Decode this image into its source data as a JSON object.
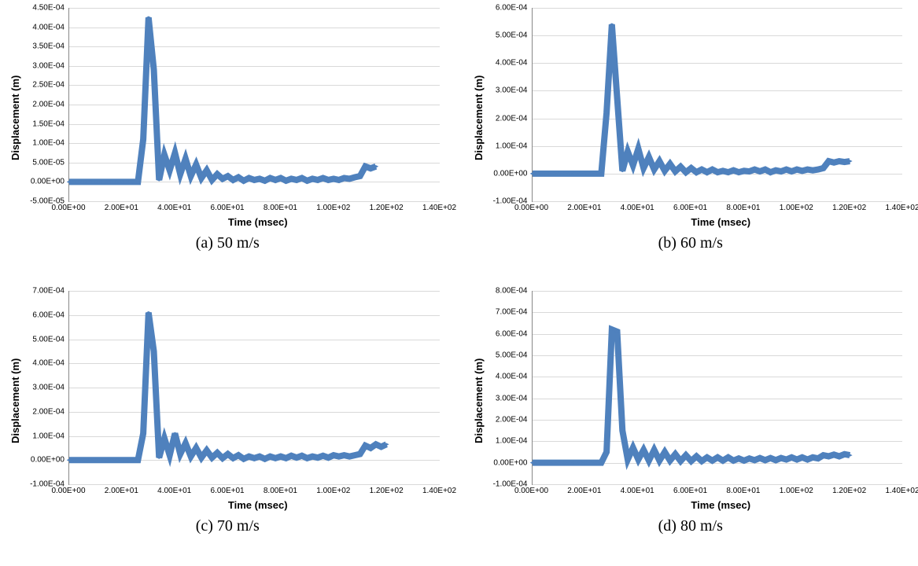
{
  "layout": {
    "cols": 2,
    "rows": 2
  },
  "common": {
    "x_label": "Time (msec)",
    "y_label": "Displacement (m)",
    "x_label_fontsize": 13,
    "y_label_fontsize": 13,
    "tick_fontsize": 10,
    "caption_fontsize": 20,
    "line_color": "#4f81bd",
    "marker_color": "#4f81bd",
    "marker_shape": "diamond",
    "marker_size": 5,
    "line_width": 2,
    "grid_color": "#d9d9d9",
    "background_color": "#ffffff",
    "axis_color": "#888888"
  },
  "charts": [
    {
      "id": "a",
      "caption": "(a) 50 m/s",
      "xlim": [
        0,
        140
      ],
      "x_ticks": [
        0,
        20,
        40,
        60,
        80,
        100,
        120,
        140
      ],
      "x_tick_labels": [
        "0.00E+00",
        "2.00E+01",
        "4.00E+01",
        "6.00E+01",
        "8.00E+01",
        "1.00E+02",
        "1.20E+02",
        "1.40E+02"
      ],
      "ylim": [
        -5e-05,
        0.00045
      ],
      "y_ticks": [
        -5e-05,
        0,
        5e-05,
        0.0001,
        0.00015,
        0.0002,
        0.00025,
        0.0003,
        0.00035,
        0.0004,
        0.00045
      ],
      "y_tick_labels": [
        "-5.00E-05",
        "0.00E+00",
        "5.00E-05",
        "1.00E-04",
        "1.50E-04",
        "2.00E-04",
        "2.50E-04",
        "3.00E-04",
        "3.50E-04",
        "4.00E-04",
        "4.50E-04"
      ],
      "data": [
        [
          0,
          0
        ],
        [
          2,
          0
        ],
        [
          4,
          0
        ],
        [
          6,
          0
        ],
        [
          8,
          0
        ],
        [
          10,
          0
        ],
        [
          12,
          0
        ],
        [
          14,
          0
        ],
        [
          16,
          0
        ],
        [
          18,
          0
        ],
        [
          20,
          0
        ],
        [
          22,
          0
        ],
        [
          24,
          0
        ],
        [
          26,
          0
        ],
        [
          28,
          0.00011
        ],
        [
          30,
          0.000425
        ],
        [
          32,
          0.00029
        ],
        [
          34,
          5e-06
        ],
        [
          36,
          7e-05
        ],
        [
          38,
          3e-05
        ],
        [
          40,
          7.5e-05
        ],
        [
          42,
          2e-05
        ],
        [
          44,
          6e-05
        ],
        [
          46,
          1.5e-05
        ],
        [
          48,
          4.5e-05
        ],
        [
          50,
          1e-05
        ],
        [
          52,
          3e-05
        ],
        [
          54,
          5e-06
        ],
        [
          56,
          2e-05
        ],
        [
          58,
          8e-06
        ],
        [
          60,
          1.5e-05
        ],
        [
          62,
          5e-06
        ],
        [
          64,
          1.2e-05
        ],
        [
          66,
          3e-06
        ],
        [
          68,
          1e-05
        ],
        [
          70,
          5e-06
        ],
        [
          72,
          8e-06
        ],
        [
          74,
          3e-06
        ],
        [
          76,
          1e-05
        ],
        [
          78,
          5e-06
        ],
        [
          80,
          1e-05
        ],
        [
          82,
          3e-06
        ],
        [
          84,
          8e-06
        ],
        [
          86,
          5e-06
        ],
        [
          88,
          1e-05
        ],
        [
          90,
          3e-06
        ],
        [
          92,
          8e-06
        ],
        [
          94,
          5e-06
        ],
        [
          96,
          1e-05
        ],
        [
          98,
          5e-06
        ],
        [
          100,
          8e-06
        ],
        [
          102,
          5e-06
        ],
        [
          104,
          1e-05
        ],
        [
          106,
          8e-06
        ],
        [
          108,
          1.2e-05
        ],
        [
          110,
          1.5e-05
        ],
        [
          112,
          4e-05
        ],
        [
          114,
          3.5e-05
        ],
        [
          116,
          4e-05
        ]
      ]
    },
    {
      "id": "b",
      "caption": "(b) 60 m/s",
      "xlim": [
        0,
        140
      ],
      "x_ticks": [
        0,
        20,
        40,
        60,
        80,
        100,
        120,
        140
      ],
      "x_tick_labels": [
        "0.00E+00",
        "2.00E+01",
        "4.00E+01",
        "6.00E+01",
        "8.00E+01",
        "1.00E+02",
        "1.20E+02",
        "1.40E+02"
      ],
      "ylim": [
        -0.0001,
        0.0006
      ],
      "y_ticks": [
        -0.0001,
        0,
        0.0001,
        0.0002,
        0.0003,
        0.0004,
        0.0005,
        0.0006
      ],
      "y_tick_labels": [
        "-1.00E-04",
        "0.00E+00",
        "1.00E-04",
        "2.00E-04",
        "3.00E-04",
        "4.00E-04",
        "5.00E-04",
        "6.00E-04"
      ],
      "data": [
        [
          0,
          0
        ],
        [
          2,
          0
        ],
        [
          4,
          0
        ],
        [
          6,
          0
        ],
        [
          8,
          0
        ],
        [
          10,
          0
        ],
        [
          12,
          0
        ],
        [
          14,
          0
        ],
        [
          16,
          0
        ],
        [
          18,
          0
        ],
        [
          20,
          0
        ],
        [
          22,
          0
        ],
        [
          24,
          0
        ],
        [
          26,
          0
        ],
        [
          28,
          0.00022
        ],
        [
          30,
          0.00054
        ],
        [
          32,
          0.000275
        ],
        [
          34,
          1e-05
        ],
        [
          36,
          8e-05
        ],
        [
          38,
          3e-05
        ],
        [
          40,
          9e-05
        ],
        [
          42,
          2e-05
        ],
        [
          44,
          6e-05
        ],
        [
          46,
          1.5e-05
        ],
        [
          48,
          4.5e-05
        ],
        [
          50,
          1e-05
        ],
        [
          52,
          3.5e-05
        ],
        [
          54,
          8e-06
        ],
        [
          56,
          2.5e-05
        ],
        [
          58,
          5e-06
        ],
        [
          60,
          2e-05
        ],
        [
          62,
          5e-06
        ],
        [
          64,
          1.5e-05
        ],
        [
          66,
          5e-06
        ],
        [
          68,
          1.5e-05
        ],
        [
          70,
          5e-06
        ],
        [
          72,
          1e-05
        ],
        [
          74,
          5e-06
        ],
        [
          76,
          1.2e-05
        ],
        [
          78,
          5e-06
        ],
        [
          80,
          1e-05
        ],
        [
          82,
          8e-06
        ],
        [
          84,
          1.5e-05
        ],
        [
          86,
          8e-06
        ],
        [
          88,
          1.5e-05
        ],
        [
          90,
          5e-06
        ],
        [
          92,
          1.2e-05
        ],
        [
          94,
          8e-06
        ],
        [
          96,
          1.5e-05
        ],
        [
          98,
          8e-06
        ],
        [
          100,
          1.5e-05
        ],
        [
          102,
          1e-05
        ],
        [
          104,
          1.5e-05
        ],
        [
          106,
          1.2e-05
        ],
        [
          108,
          1.5e-05
        ],
        [
          110,
          2e-05
        ],
        [
          112,
          4.5e-05
        ],
        [
          114,
          4e-05
        ],
        [
          116,
          4.5e-05
        ],
        [
          118,
          4.2e-05
        ],
        [
          120,
          4.5e-05
        ]
      ]
    },
    {
      "id": "c",
      "caption": "(c) 70 m/s",
      "xlim": [
        0,
        140
      ],
      "x_ticks": [
        0,
        20,
        40,
        60,
        80,
        100,
        120,
        140
      ],
      "x_tick_labels": [
        "0.00E+00",
        "2.00E+01",
        "4.00E+01",
        "6.00E+01",
        "8.00E+01",
        "1.00E+02",
        "1.20E+02",
        "1.40E+02"
      ],
      "ylim": [
        -0.0001,
        0.0007
      ],
      "y_ticks": [
        -0.0001,
        0,
        0.0001,
        0.0002,
        0.0003,
        0.0004,
        0.0005,
        0.0006,
        0.0007
      ],
      "y_tick_labels": [
        "-1.00E-04",
        "0.00E+00",
        "1.00E-04",
        "2.00E-04",
        "3.00E-04",
        "4.00E-04",
        "5.00E-04",
        "6.00E-04",
        "7.00E-04"
      ],
      "data": [
        [
          0,
          0
        ],
        [
          2,
          0
        ],
        [
          4,
          0
        ],
        [
          6,
          0
        ],
        [
          8,
          0
        ],
        [
          10,
          0
        ],
        [
          12,
          0
        ],
        [
          14,
          0
        ],
        [
          16,
          0
        ],
        [
          18,
          0
        ],
        [
          20,
          0
        ],
        [
          22,
          0
        ],
        [
          24,
          0
        ],
        [
          26,
          0
        ],
        [
          28,
          0.00011
        ],
        [
          30,
          0.00061
        ],
        [
          32,
          0.00045
        ],
        [
          34,
          1e-05
        ],
        [
          36,
          9e-05
        ],
        [
          38,
          2e-05
        ],
        [
          40,
          0.00011
        ],
        [
          42,
          2.5e-05
        ],
        [
          44,
          7e-05
        ],
        [
          46,
          1.5e-05
        ],
        [
          48,
          5e-05
        ],
        [
          50,
          1e-05
        ],
        [
          52,
          4e-05
        ],
        [
          54,
          1e-05
        ],
        [
          56,
          3e-05
        ],
        [
          58,
          8e-06
        ],
        [
          60,
          2.5e-05
        ],
        [
          62,
          8e-06
        ],
        [
          64,
          2e-05
        ],
        [
          66,
          5e-06
        ],
        [
          68,
          1.5e-05
        ],
        [
          70,
          8e-06
        ],
        [
          72,
          1.5e-05
        ],
        [
          74,
          5e-06
        ],
        [
          76,
          1.5e-05
        ],
        [
          78,
          8e-06
        ],
        [
          80,
          1.5e-05
        ],
        [
          82,
          8e-06
        ],
        [
          84,
          1.8e-05
        ],
        [
          86,
          1e-05
        ],
        [
          88,
          1.8e-05
        ],
        [
          90,
          8e-06
        ],
        [
          92,
          1.5e-05
        ],
        [
          94,
          1e-05
        ],
        [
          96,
          1.8e-05
        ],
        [
          98,
          1e-05
        ],
        [
          100,
          2e-05
        ],
        [
          102,
          1.5e-05
        ],
        [
          104,
          2e-05
        ],
        [
          106,
          1.5e-05
        ],
        [
          108,
          2e-05
        ],
        [
          110,
          2.5e-05
        ],
        [
          112,
          6e-05
        ],
        [
          114,
          5e-05
        ],
        [
          116,
          6.5e-05
        ],
        [
          118,
          5.5e-05
        ],
        [
          120,
          6.5e-05
        ]
      ]
    },
    {
      "id": "d",
      "caption": "(d) 80 m/s",
      "xlim": [
        0,
        140
      ],
      "x_ticks": [
        0,
        20,
        40,
        60,
        80,
        100,
        120,
        140
      ],
      "x_tick_labels": [
        "0.00E+00",
        "2.00E+01",
        "4.00E+01",
        "6.00E+01",
        "8.00E+01",
        "1.00E+02",
        "1.20E+02",
        "1.40E+02"
      ],
      "ylim": [
        -0.0001,
        0.0008
      ],
      "y_ticks": [
        -0.0001,
        0,
        0.0001,
        0.0002,
        0.0003,
        0.0004,
        0.0005,
        0.0006,
        0.0007,
        0.0008
      ],
      "y_tick_labels": [
        "-1.00E-04",
        "0.00E+00",
        "1.00E-04",
        "2.00E-04",
        "3.00E-04",
        "4.00E-04",
        "5.00E-04",
        "6.00E-04",
        "7.00E-04",
        "8.00E-04"
      ],
      "data": [
        [
          0,
          0
        ],
        [
          2,
          0
        ],
        [
          4,
          0
        ],
        [
          6,
          0
        ],
        [
          8,
          0
        ],
        [
          10,
          0
        ],
        [
          12,
          0
        ],
        [
          14,
          0
        ],
        [
          16,
          0
        ],
        [
          18,
          0
        ],
        [
          20,
          0
        ],
        [
          22,
          0
        ],
        [
          24,
          0
        ],
        [
          26,
          0
        ],
        [
          28,
          5e-05
        ],
        [
          30,
          0.00062
        ],
        [
          32,
          0.00061
        ],
        [
          34,
          0.00015
        ],
        [
          36,
          1.5e-05
        ],
        [
          38,
          7e-05
        ],
        [
          40,
          1.5e-05
        ],
        [
          42,
          6e-05
        ],
        [
          44,
          1e-05
        ],
        [
          46,
          6e-05
        ],
        [
          48,
          1e-05
        ],
        [
          50,
          5e-05
        ],
        [
          52,
          1e-05
        ],
        [
          54,
          4e-05
        ],
        [
          56,
          8e-06
        ],
        [
          58,
          3.5e-05
        ],
        [
          60,
          8e-06
        ],
        [
          62,
          3e-05
        ],
        [
          64,
          8e-06
        ],
        [
          66,
          2.5e-05
        ],
        [
          68,
          1e-05
        ],
        [
          70,
          2.5e-05
        ],
        [
          72,
          1e-05
        ],
        [
          74,
          2.5e-05
        ],
        [
          76,
          1e-05
        ],
        [
          78,
          2e-05
        ],
        [
          80,
          1e-05
        ],
        [
          82,
          2e-05
        ],
        [
          84,
          1.2e-05
        ],
        [
          86,
          2.2e-05
        ],
        [
          88,
          1.2e-05
        ],
        [
          90,
          2.2e-05
        ],
        [
          92,
          1.2e-05
        ],
        [
          94,
          2.2e-05
        ],
        [
          96,
          1.5e-05
        ],
        [
          98,
          2.5e-05
        ],
        [
          100,
          1.5e-05
        ],
        [
          102,
          2.5e-05
        ],
        [
          104,
          1.5e-05
        ],
        [
          106,
          2.5e-05
        ],
        [
          108,
          2e-05
        ],
        [
          110,
          3.5e-05
        ],
        [
          112,
          3e-05
        ],
        [
          114,
          3.8e-05
        ],
        [
          116,
          3e-05
        ],
        [
          118,
          4e-05
        ],
        [
          120,
          3.5e-05
        ]
      ]
    }
  ]
}
